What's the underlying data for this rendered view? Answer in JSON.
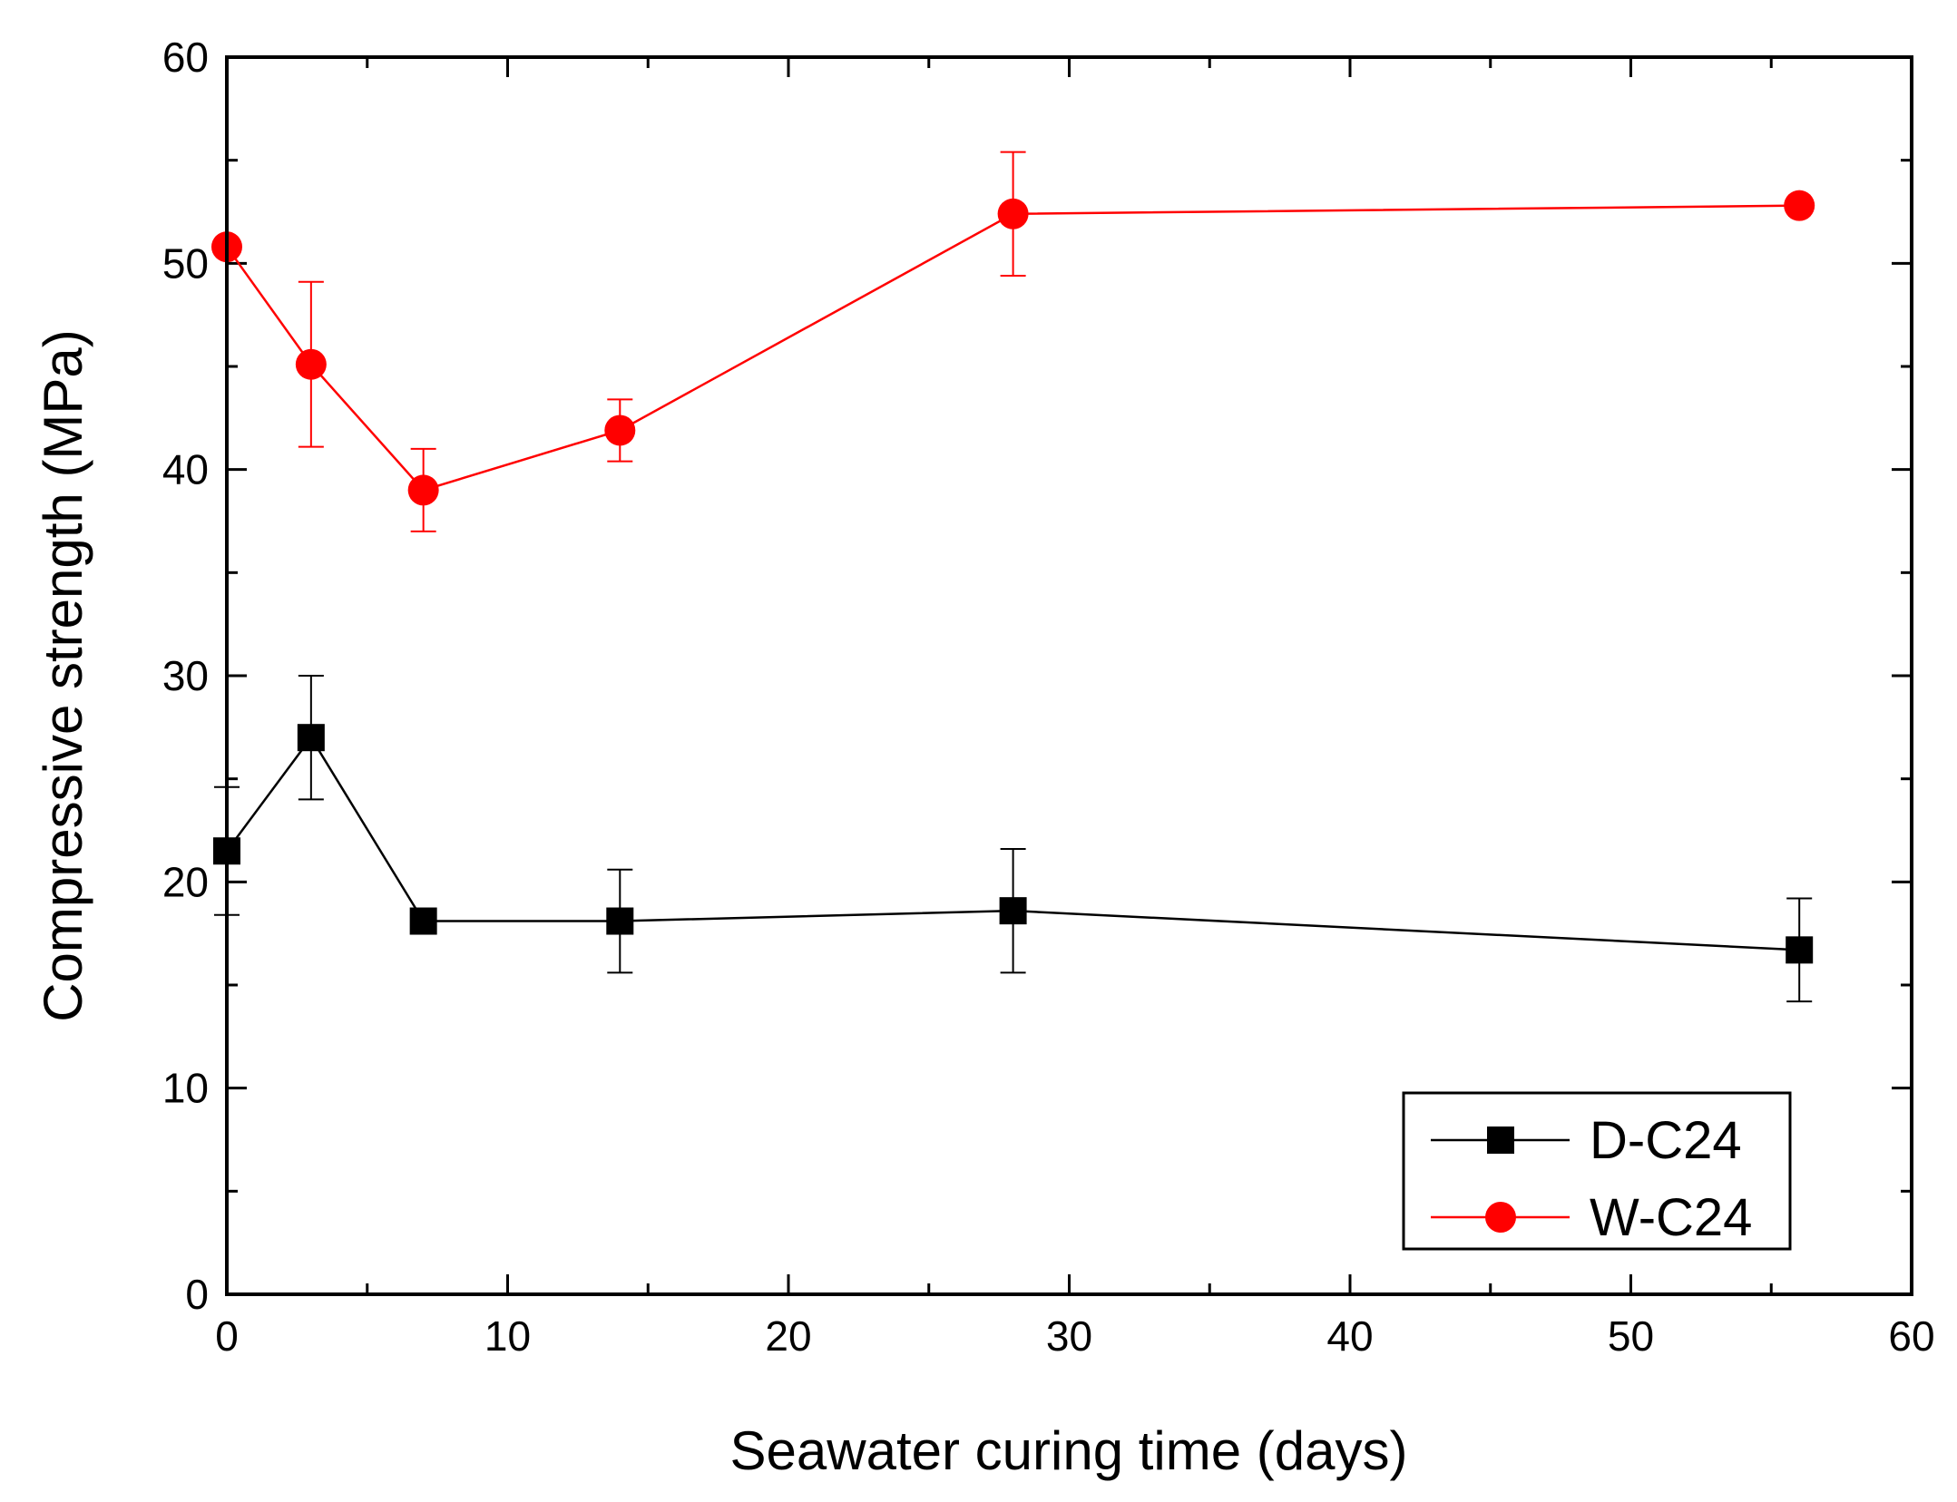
{
  "chart_data": {
    "type": "line",
    "title": "",
    "xlabel": "Seawater curing time (days)",
    "ylabel": "Compressive strength (MPa)",
    "xlim": [
      0,
      60
    ],
    "ylim": [
      0,
      60
    ],
    "x_ticks": [
      0,
      10,
      20,
      30,
      40,
      50,
      60
    ],
    "y_ticks": [
      0,
      10,
      20,
      30,
      40,
      50,
      60
    ],
    "grid": false,
    "legend_position": "bottom-right",
    "series": [
      {
        "name": "D-C24",
        "color": "#000000",
        "marker": "square",
        "x": [
          0,
          3,
          7,
          14,
          28,
          56
        ],
        "y": [
          21.5,
          27.0,
          18.1,
          18.1,
          18.6,
          16.7
        ],
        "err": [
          3.1,
          3.0,
          0.0,
          2.5,
          3.0,
          2.5
        ]
      },
      {
        "name": "W-C24",
        "color": "#ff0000",
        "marker": "circle",
        "x": [
          0,
          3,
          7,
          14,
          28,
          56
        ],
        "y": [
          50.8,
          45.1,
          39.0,
          41.9,
          52.4,
          52.8
        ],
        "err": [
          0.0,
          4.0,
          2.0,
          1.5,
          3.0,
          0.0
        ]
      }
    ]
  }
}
